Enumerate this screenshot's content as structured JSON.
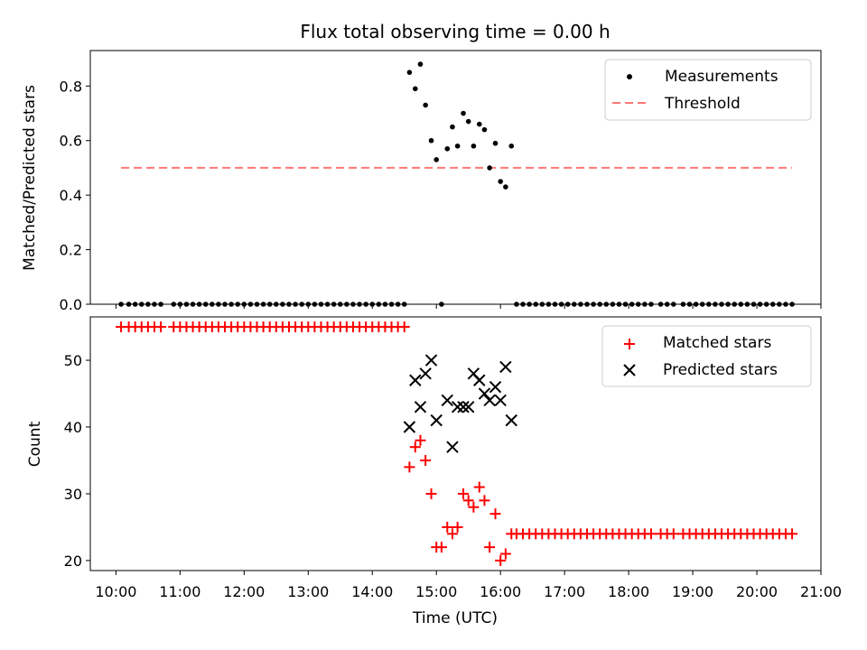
{
  "chart_data": [
    {
      "type": "scatter",
      "title": "Flux total observing time = 0.00 h",
      "ylabel": "Matched/Predicted stars",
      "xlabel": "",
      "xlim": [
        9.6,
        21.0
      ],
      "ylim": [
        0.0,
        0.93
      ],
      "yticks": [
        0.0,
        0.2,
        0.4,
        0.6,
        0.8
      ],
      "ytick_labels": [
        "0.0",
        "0.2",
        "0.4",
        "0.6",
        "0.8"
      ],
      "legend": {
        "placement": "top-right",
        "entries": [
          "Measurements",
          "Threshold"
        ]
      },
      "threshold": {
        "name": "Threshold",
        "y": 0.5,
        "x_range": [
          10.08,
          20.55
        ],
        "color": "#ff7777"
      },
      "series": [
        {
          "name": "Measurements",
          "color": "#000000",
          "x": [
            10.08,
            10.2,
            10.3,
            10.4,
            10.5,
            10.6,
            10.7,
            10.9,
            11.0,
            11.1,
            11.2,
            11.3,
            11.4,
            11.5,
            11.6,
            11.7,
            11.8,
            11.9,
            12.0,
            12.1,
            12.2,
            12.3,
            12.4,
            12.5,
            12.6,
            12.7,
            12.8,
            12.9,
            13.0,
            13.1,
            13.2,
            13.3,
            13.4,
            13.5,
            13.6,
            13.7,
            13.8,
            13.9,
            14.0,
            14.1,
            14.2,
            14.3,
            14.4,
            14.5,
            14.58,
            14.67,
            14.75,
            14.83,
            14.92,
            15.0,
            15.08,
            15.17,
            15.25,
            15.33,
            15.42,
            15.5,
            15.58,
            15.67,
            15.75,
            15.83,
            15.92,
            16.0,
            16.08,
            16.17,
            16.25,
            16.35,
            16.45,
            16.55,
            16.65,
            16.75,
            16.85,
            16.95,
            17.05,
            17.15,
            17.25,
            17.35,
            17.45,
            17.55,
            17.65,
            17.75,
            17.85,
            17.95,
            18.05,
            18.15,
            18.25,
            18.35,
            18.5,
            18.6,
            18.7,
            18.85,
            18.95,
            19.05,
            19.15,
            19.25,
            19.35,
            19.45,
            19.55,
            19.65,
            19.75,
            19.85,
            19.95,
            20.05,
            20.15,
            20.25,
            20.35,
            20.45,
            20.55
          ],
          "y": [
            0,
            0,
            0,
            0,
            0,
            0,
            0,
            0,
            0,
            0,
            0,
            0,
            0,
            0,
            0,
            0,
            0,
            0,
            0,
            0,
            0,
            0,
            0,
            0,
            0,
            0,
            0,
            0,
            0,
            0,
            0,
            0,
            0,
            0,
            0,
            0,
            0,
            0,
            0,
            0,
            0,
            0,
            0,
            0,
            0.85,
            0.79,
            0.88,
            0.73,
            0.6,
            0.53,
            0,
            0.57,
            0.65,
            0.58,
            0.7,
            0.67,
            0.58,
            0.66,
            0.64,
            0.5,
            0.59,
            0.45,
            0.43,
            0.58,
            0,
            0,
            0,
            0,
            0,
            0,
            0,
            0,
            0,
            0,
            0,
            0,
            0,
            0,
            0,
            0,
            0,
            0,
            0,
            0,
            0,
            0,
            0,
            0,
            0,
            0,
            0,
            0,
            0,
            0,
            0,
            0,
            0,
            0,
            0,
            0,
            0,
            0,
            0,
            0,
            0,
            0,
            0
          ]
        }
      ]
    },
    {
      "type": "scatter",
      "title": "",
      "ylabel": "Count",
      "xlabel": "Time (UTC)",
      "xlim": [
        9.6,
        21.0
      ],
      "ylim": [
        18.5,
        56.5
      ],
      "yticks": [
        20,
        30,
        40,
        50
      ],
      "ytick_labels": [
        "20",
        "30",
        "40",
        "50"
      ],
      "xticks": [
        10,
        11,
        12,
        13,
        14,
        15,
        16,
        17,
        18,
        19,
        20,
        21
      ],
      "xtick_labels": [
        "10:00",
        "11:00",
        "12:00",
        "13:00",
        "14:00",
        "15:00",
        "16:00",
        "17:00",
        "18:00",
        "19:00",
        "20:00",
        "21:00"
      ],
      "legend": {
        "placement": "top-right",
        "entries": [
          "Matched stars",
          "Predicted stars"
        ]
      },
      "series": [
        {
          "name": "Matched stars",
          "marker": "plus",
          "color": "#ff0000",
          "x": [
            10.08,
            10.2,
            10.3,
            10.4,
            10.5,
            10.6,
            10.7,
            10.9,
            11.0,
            11.1,
            11.2,
            11.3,
            11.4,
            11.5,
            11.6,
            11.7,
            11.8,
            11.9,
            12.0,
            12.1,
            12.2,
            12.3,
            12.4,
            12.5,
            12.6,
            12.7,
            12.8,
            12.9,
            13.0,
            13.1,
            13.2,
            13.3,
            13.4,
            13.5,
            13.6,
            13.7,
            13.8,
            13.9,
            14.0,
            14.1,
            14.2,
            14.3,
            14.4,
            14.5,
            14.58,
            14.67,
            14.75,
            14.83,
            14.92,
            15.0,
            15.08,
            15.17,
            15.25,
            15.33,
            15.42,
            15.5,
            15.58,
            15.67,
            15.75,
            15.83,
            15.92,
            16.0,
            16.08,
            16.17,
            16.25,
            16.35,
            16.45,
            16.55,
            16.65,
            16.75,
            16.85,
            16.95,
            17.05,
            17.15,
            17.25,
            17.35,
            17.45,
            17.55,
            17.65,
            17.75,
            17.85,
            17.95,
            18.05,
            18.15,
            18.25,
            18.35,
            18.5,
            18.6,
            18.7,
            18.85,
            18.95,
            19.05,
            19.15,
            19.25,
            19.35,
            19.45,
            19.55,
            19.65,
            19.75,
            19.85,
            19.95,
            20.05,
            20.15,
            20.25,
            20.35,
            20.45,
            20.55
          ],
          "y": [
            55,
            55,
            55,
            55,
            55,
            55,
            55,
            55,
            55,
            55,
            55,
            55,
            55,
            55,
            55,
            55,
            55,
            55,
            55,
            55,
            55,
            55,
            55,
            55,
            55,
            55,
            55,
            55,
            55,
            55,
            55,
            55,
            55,
            55,
            55,
            55,
            55,
            55,
            55,
            55,
            55,
            55,
            55,
            55,
            34,
            37,
            38,
            35,
            30,
            22,
            22,
            25,
            24,
            25,
            30,
            29,
            28,
            31,
            29,
            22,
            27,
            20,
            21,
            24,
            24,
            24,
            24,
            24,
            24,
            24,
            24,
            24,
            24,
            24,
            24,
            24,
            24,
            24,
            24,
            24,
            24,
            24,
            24,
            24,
            24,
            24,
            24,
            24,
            24,
            24,
            24,
            24,
            24,
            24,
            24,
            24,
            24,
            24,
            24,
            24,
            24,
            24,
            24,
            24,
            24,
            24,
            24
          ]
        },
        {
          "name": "Predicted stars",
          "marker": "x",
          "color": "#000000",
          "x": [
            14.58,
            14.67,
            14.75,
            14.83,
            14.92,
            15.0,
            15.17,
            15.25,
            15.33,
            15.42,
            15.5,
            15.58,
            15.67,
            15.75,
            15.83,
            15.92,
            16.0,
            16.08,
            16.17
          ],
          "y": [
            40,
            47,
            43,
            48,
            50,
            41,
            44,
            37,
            43,
            43,
            43,
            48,
            47,
            45,
            44,
            46,
            44,
            49,
            41
          ]
        }
      ]
    }
  ]
}
